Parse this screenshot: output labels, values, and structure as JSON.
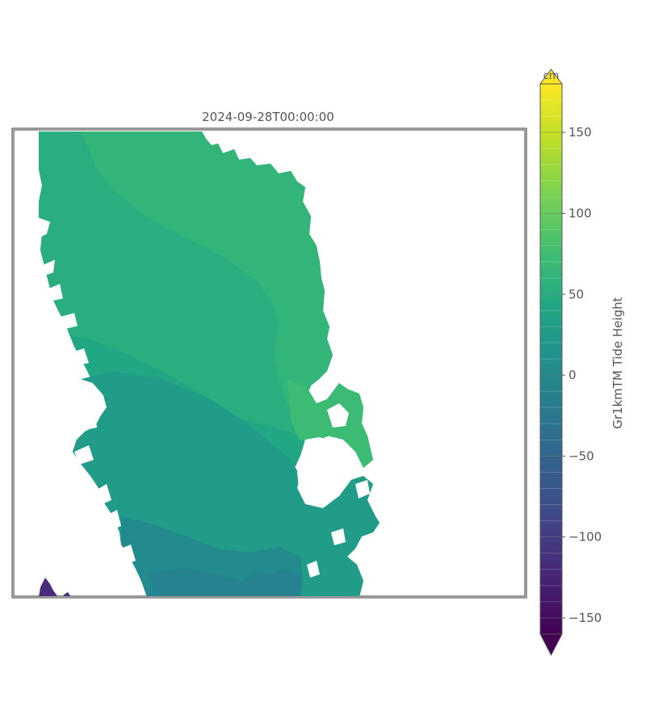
{
  "map": {
    "title": "2024-09-28T00:00:00"
  },
  "colorbar": {
    "label": "Gr1kmTM Tide Height",
    "unit_label": "cm",
    "ticks": [
      "−150",
      "−100",
      "−50",
      "0",
      "50",
      "100",
      "150"
    ],
    "tick_values": [
      -150,
      -100,
      -50,
      0,
      50,
      100,
      150
    ],
    "range": [
      -160,
      180
    ],
    "levels": 34,
    "extend": "both",
    "colormap": "viridis",
    "colors": [
      "#440154",
      "#482475",
      "#414487",
      "#355f8d",
      "#2a788e",
      "#21918c",
      "#22a884",
      "#44bf70",
      "#7ad151",
      "#bddf26",
      "#fde725"
    ]
  },
  "land": {
    "region": "Greenland",
    "colors": {
      "north": "#33b57a",
      "northeast_fjords": "#3cbb75",
      "central": "#22a785",
      "south": "#219c89",
      "southern_tip": "#238a8d",
      "inlet": "#472d7b"
    }
  }
}
